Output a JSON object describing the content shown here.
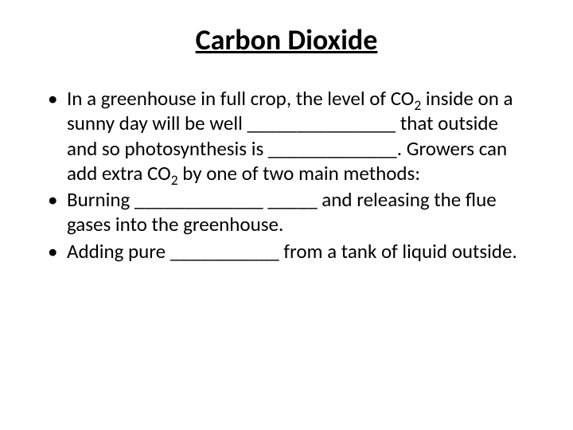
{
  "title": "Carbon Dioxide",
  "bullets": [
    {
      "segments": [
        "In a greenhouse in full crop, the level of CO",
        " inside on a sunny day will be well _______________ that outside and so photosynthesis is _____________.  Growers can add extra CO",
        " by one of two main methods:"
      ],
      "sub1": "2",
      "sub2": "2"
    },
    {
      "text": "Burning _____________  _____ and releasing the flue gases into the greenhouse."
    },
    {
      "text": "Adding pure ___________ from a tank of liquid outside."
    }
  ],
  "style": {
    "background_color": "#ffffff",
    "text_color": "#000000",
    "title_fontsize": 36,
    "body_fontsize": 25,
    "bullet_char": "•"
  }
}
